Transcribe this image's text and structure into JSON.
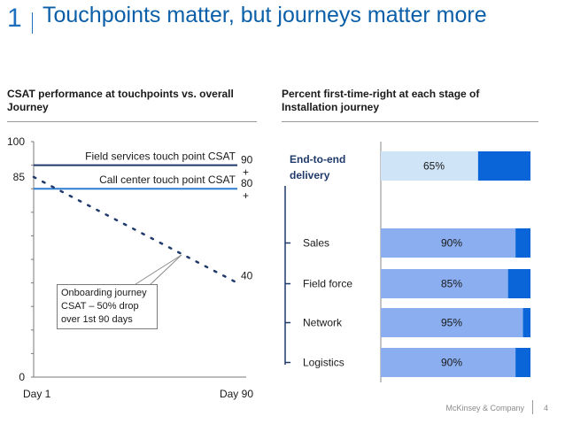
{
  "header": {
    "slide_number": "1",
    "title": "Touchpoints matter, but journeys matter more"
  },
  "left_panel": {
    "title": "CSAT performance at touchpoints vs. overall Journey",
    "annotation": "Onboarding journey CSAT – 50% drop over 1st  90 days"
  },
  "right_panel": {
    "title": "Percent first-time-right at each stage of Installation journey",
    "end_to_end_label": "End-to-end delivery"
  },
  "footer": {
    "company": "McKinsey & Company",
    "page": "4"
  },
  "colors": {
    "title_blue": "#0b5fa8",
    "dark_navy": "#1f3a6a",
    "mid_blue": "#2e7dd1",
    "bar_light": "#8aaef0",
    "bar_dark": "#0a66d8",
    "e2e_light": "#cfe4f7"
  },
  "chart_data": [
    {
      "type": "line",
      "title": "CSAT performance at touchpoints vs. overall Journey",
      "ylim": [
        0,
        100
      ],
      "y_ticks_labeled": [
        "100",
        "85",
        "0"
      ],
      "x_labels": [
        "Day 1",
        "Day 90"
      ],
      "series": [
        {
          "name": "Field services touch point CSAT",
          "x": [
            "Day 1",
            "Day 90"
          ],
          "y": [
            90,
            90
          ],
          "end_label": "90 +",
          "style": "solid",
          "color": "#1f3a6a"
        },
        {
          "name": "Call center touch point CSAT",
          "x": [
            "Day 1",
            "Day 90"
          ],
          "y": [
            80,
            80
          ],
          "end_label": "80 +",
          "style": "solid",
          "color": "#2e7dd1"
        },
        {
          "x": [
            "Day 1",
            "Day 90"
          ],
          "y": [
            85,
            40
          ],
          "start_label": "85",
          "end_label": "40",
          "style": "dotted",
          "color": "#1f3a6a"
        }
      ],
      "grid": false
    },
    {
      "type": "bar",
      "orientation": "horizontal",
      "title": "Percent first-time-right at each stage of Installation journey",
      "categories": [
        "End-to-end delivery",
        "Sales",
        "Field force",
        "Network",
        "Logistics"
      ],
      "values": [
        65,
        90,
        85,
        95,
        90
      ],
      "labels": [
        "65%",
        "90%",
        "85%",
        "95%",
        "90%"
      ],
      "xlim": [
        0,
        100
      ]
    }
  ]
}
